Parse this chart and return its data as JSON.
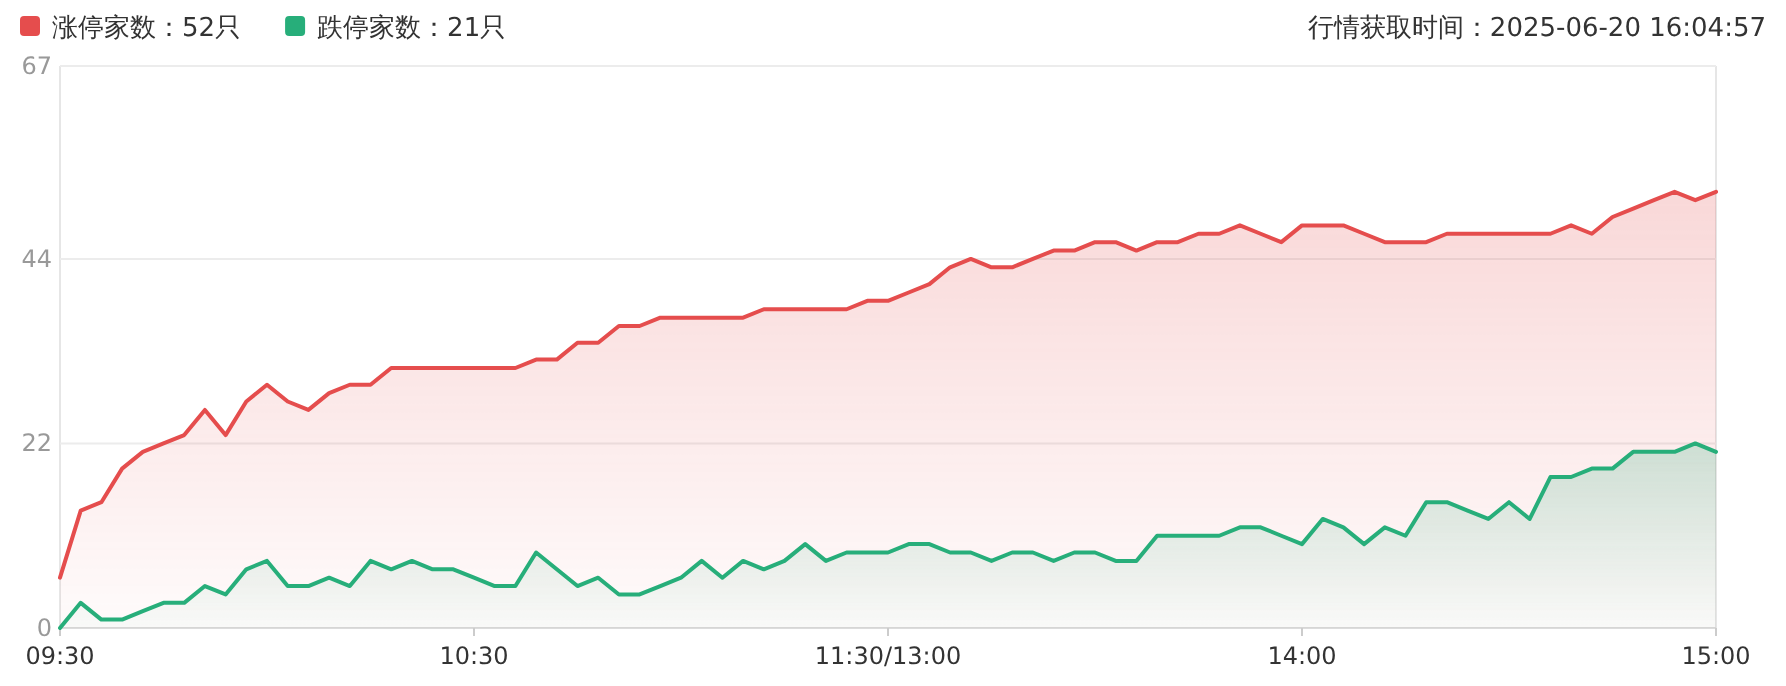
{
  "chart_data": {
    "type": "area",
    "legend": "top left",
    "grid": "y",
    "annotations": [
      "行情获取时间：2025-06-20 16:04:57"
    ],
    "categories": [
      "09:30",
      null,
      null,
      null,
      null,
      null,
      null,
      null,
      null,
      null,
      null,
      null,
      null,
      null,
      null,
      null,
      null,
      null,
      null,
      null,
      "10:30",
      null,
      null,
      null,
      null,
      null,
      null,
      null,
      null,
      null,
      null,
      null,
      null,
      null,
      null,
      null,
      null,
      null,
      null,
      null,
      "11:30/13:00",
      null,
      null,
      null,
      null,
      null,
      null,
      null,
      null,
      null,
      null,
      null,
      null,
      null,
      null,
      null,
      null,
      null,
      null,
      null,
      "14:00",
      null,
      null,
      null,
      null,
      null,
      null,
      null,
      null,
      null,
      null,
      null,
      null,
      null,
      null,
      null,
      null,
      null,
      null,
      null,
      "15:00"
    ],
    "ylim": [
      0,
      67
    ],
    "yticks": [
      0,
      22,
      44,
      67
    ],
    "series": [
      {
        "name": "涨停家数：52只",
        "color": "#e54d4d",
        "values": [
          6,
          14,
          15,
          19,
          21,
          22,
          23,
          26,
          23,
          27,
          29,
          27,
          26,
          28,
          29,
          29,
          31,
          31,
          31,
          31,
          31,
          31,
          31,
          32,
          32,
          34,
          34,
          36,
          36,
          37,
          37,
          37,
          37,
          37,
          38,
          38,
          38,
          38,
          38,
          39,
          39,
          40,
          41,
          43,
          44,
          43,
          43,
          44,
          45,
          45,
          46,
          46,
          45,
          46,
          46,
          47,
          47,
          48,
          47,
          46,
          48,
          48,
          48,
          47,
          46,
          46,
          46,
          47,
          47,
          47,
          47,
          47,
          47,
          48,
          47,
          49,
          50,
          51,
          52,
          51,
          52
        ]
      },
      {
        "name": "跌停家数：21只",
        "color": "#27ae7a",
        "values": [
          0,
          3,
          1,
          1,
          2,
          3,
          3,
          5,
          4,
          7,
          8,
          5,
          5,
          6,
          5,
          8,
          7,
          8,
          7,
          7,
          6,
          5,
          5,
          9,
          7,
          5,
          6,
          4,
          4,
          5,
          6,
          8,
          6,
          8,
          7,
          8,
          10,
          8,
          9,
          9,
          9,
          10,
          10,
          9,
          9,
          8,
          9,
          9,
          8,
          9,
          9,
          8,
          8,
          11,
          11,
          11,
          11,
          12,
          12,
          11,
          10,
          13,
          12,
          10,
          12,
          11,
          15,
          15,
          14,
          13,
          15,
          13,
          18,
          18,
          19,
          19,
          21,
          21,
          21,
          22,
          21
        ]
      }
    ]
  }
}
